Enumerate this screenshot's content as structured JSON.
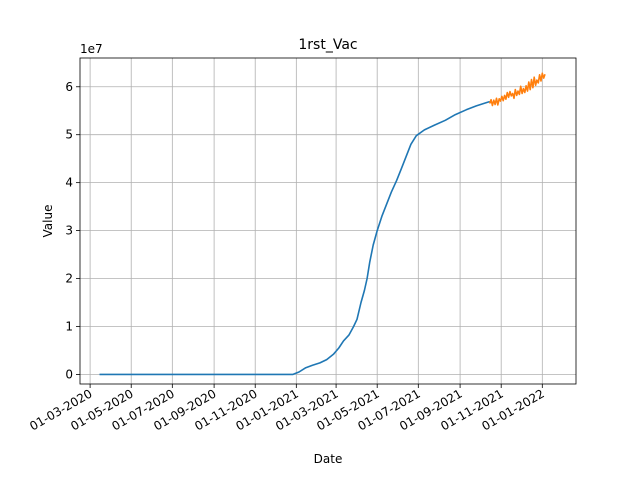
{
  "chart_data": {
    "type": "line",
    "title": "1rst_Vac",
    "xlabel": "Date",
    "ylabel": "Value",
    "y_offset_label": "1e7",
    "grid": true,
    "xlim": [
      "2020-02-15",
      "2022-02-20"
    ],
    "ylim": [
      -2000000,
      66000000
    ],
    "x_ticks": [
      {
        "date": "2020-03-01",
        "label": "01-03-2020"
      },
      {
        "date": "2020-05-01",
        "label": "01-05-2020"
      },
      {
        "date": "2020-07-01",
        "label": "01-07-2020"
      },
      {
        "date": "2020-09-01",
        "label": "01-09-2020"
      },
      {
        "date": "2020-11-01",
        "label": "01-11-2020"
      },
      {
        "date": "2021-01-01",
        "label": "01-01-2021"
      },
      {
        "date": "2021-03-01",
        "label": "01-03-2021"
      },
      {
        "date": "2021-05-01",
        "label": "01-05-2021"
      },
      {
        "date": "2021-07-01",
        "label": "01-07-2021"
      },
      {
        "date": "2021-09-01",
        "label": "01-09-2021"
      },
      {
        "date": "2021-11-01",
        "label": "01-11-2021"
      },
      {
        "date": "2022-01-01",
        "label": "01-01-2022"
      }
    ],
    "y_ticks": [
      {
        "value": 0,
        "label": "0"
      },
      {
        "value": 10000000,
        "label": "1"
      },
      {
        "value": 20000000,
        "label": "2"
      },
      {
        "value": 30000000,
        "label": "3"
      },
      {
        "value": 40000000,
        "label": "4"
      },
      {
        "value": 50000000,
        "label": "5"
      },
      {
        "value": 60000000,
        "label": "6"
      }
    ],
    "series": [
      {
        "color": "#1f77b4",
        "points": [
          [
            "2020-03-15",
            0
          ],
          [
            "2020-06-01",
            0
          ],
          [
            "2020-09-01",
            0
          ],
          [
            "2020-12-27",
            0
          ],
          [
            "2021-01-05",
            500000
          ],
          [
            "2021-01-15",
            1400000
          ],
          [
            "2021-01-25",
            1900000
          ],
          [
            "2021-02-05",
            2400000
          ],
          [
            "2021-02-15",
            3100000
          ],
          [
            "2021-02-25",
            4200000
          ],
          [
            "2021-03-05",
            5500000
          ],
          [
            "2021-03-12",
            7000000
          ],
          [
            "2021-03-20",
            8200000
          ],
          [
            "2021-03-27",
            10000000
          ],
          [
            "2021-04-01",
            11500000
          ],
          [
            "2021-04-07",
            15000000
          ],
          [
            "2021-04-12",
            17500000
          ],
          [
            "2021-04-16",
            20000000
          ],
          [
            "2021-04-20",
            23500000
          ],
          [
            "2021-04-25",
            27000000
          ],
          [
            "2021-05-01",
            30000000
          ],
          [
            "2021-05-08",
            33000000
          ],
          [
            "2021-05-15",
            35500000
          ],
          [
            "2021-05-22",
            38000000
          ],
          [
            "2021-05-30",
            40500000
          ],
          [
            "2021-06-06",
            43000000
          ],
          [
            "2021-06-13",
            45500000
          ],
          [
            "2021-06-20",
            48000000
          ],
          [
            "2021-06-28",
            49800000
          ],
          [
            "2021-07-10",
            51000000
          ],
          [
            "2021-07-25",
            52000000
          ],
          [
            "2021-08-10",
            53000000
          ],
          [
            "2021-08-25",
            54200000
          ],
          [
            "2021-09-10",
            55200000
          ],
          [
            "2021-09-25",
            56000000
          ],
          [
            "2021-10-10",
            56700000
          ],
          [
            "2021-10-15",
            56900000
          ]
        ]
      },
      {
        "color": "#ff7f0e",
        "points": [
          [
            "2021-10-15",
            56500000
          ],
          [
            "2021-10-17",
            57300000
          ],
          [
            "2021-10-19",
            56100000
          ],
          [
            "2021-10-21",
            57200000
          ],
          [
            "2021-10-23",
            56300000
          ],
          [
            "2021-10-25",
            57600000
          ],
          [
            "2021-10-27",
            56200000
          ],
          [
            "2021-10-29",
            57500000
          ],
          [
            "2021-10-31",
            57000000
          ],
          [
            "2021-11-02",
            58000000
          ],
          [
            "2021-11-04",
            57100000
          ],
          [
            "2021-11-06",
            58200000
          ],
          [
            "2021-11-08",
            57400000
          ],
          [
            "2021-11-10",
            58800000
          ],
          [
            "2021-11-12",
            57800000
          ],
          [
            "2021-11-14",
            59000000
          ],
          [
            "2021-11-16",
            58100000
          ],
          [
            "2021-11-18",
            58600000
          ],
          [
            "2021-11-20",
            57600000
          ],
          [
            "2021-11-22",
            59400000
          ],
          [
            "2021-11-24",
            58200000
          ],
          [
            "2021-11-26",
            59100000
          ],
          [
            "2021-11-28",
            58400000
          ],
          [
            "2021-11-30",
            60100000
          ],
          [
            "2021-12-02",
            58600000
          ],
          [
            "2021-12-04",
            59600000
          ],
          [
            "2021-12-06",
            58800000
          ],
          [
            "2021-12-08",
            60200000
          ],
          [
            "2021-12-10",
            59100000
          ],
          [
            "2021-12-12",
            61000000
          ],
          [
            "2021-12-14",
            59400000
          ],
          [
            "2021-12-16",
            61500000
          ],
          [
            "2021-12-18",
            59800000
          ],
          [
            "2021-12-20",
            62000000
          ],
          [
            "2021-12-22",
            60300000
          ],
          [
            "2021-12-24",
            61400000
          ],
          [
            "2021-12-26",
            60800000
          ],
          [
            "2021-12-28",
            62500000
          ],
          [
            "2021-12-30",
            61200000
          ],
          [
            "2022-01-01",
            62800000
          ],
          [
            "2022-01-03",
            61800000
          ],
          [
            "2022-01-05",
            62600000
          ]
        ]
      }
    ]
  }
}
